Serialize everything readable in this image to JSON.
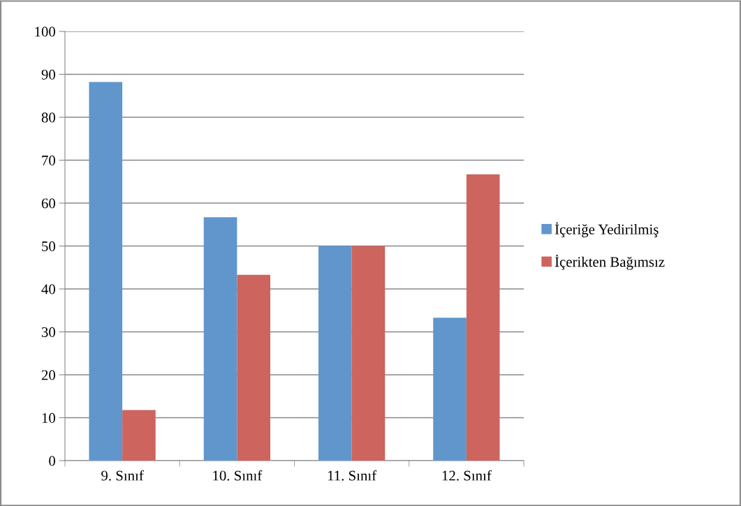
{
  "chart_data": {
    "type": "bar",
    "categories": [
      "9. Sınıf",
      "10. Sınıf",
      "11. Sınıf",
      "12. Sınıf"
    ],
    "series": [
      {
        "name": "İçeriğe Yedirilmiş",
        "color": "#6096cb",
        "values": [
          88.2,
          56.7,
          50,
          33.3
        ]
      },
      {
        "name": "İçerikten Bağımsız",
        "color": "#cd645e",
        "values": [
          11.8,
          43.3,
          50,
          66.7
        ]
      }
    ],
    "ylim": [
      0,
      100
    ],
    "yticks": [
      0,
      10,
      20,
      30,
      40,
      50,
      60,
      70,
      80,
      90,
      100
    ],
    "grid": "y",
    "legend": "right"
  }
}
